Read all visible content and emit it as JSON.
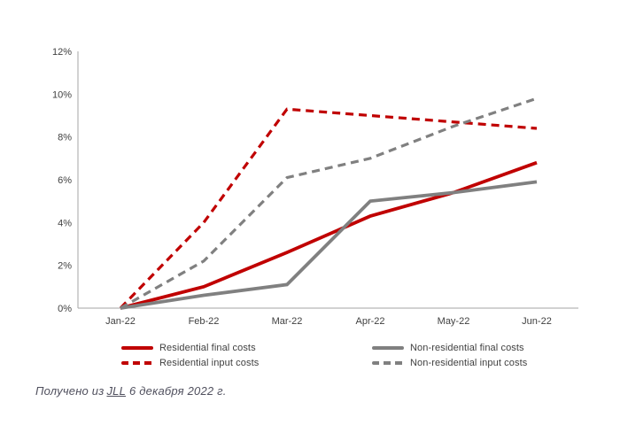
{
  "caption": {
    "prefix": "Получено из",
    "link_text": "JLL",
    "suffix": "6 декабря 2022 г."
  },
  "colors": {
    "residential_red": "#c00000",
    "non_residential_gray": "#808080",
    "axis_gray": "#a6a6a6",
    "tick_text": "#404040",
    "caption_text": "#50505e"
  },
  "chart_data": {
    "type": "line",
    "title": "",
    "xlabel": "",
    "ylabel": "",
    "grid": false,
    "legend_position": "bottom",
    "ylim": [
      0,
      12
    ],
    "ytick_step": 2,
    "yticks": [
      "0%",
      "2%",
      "4%",
      "6%",
      "8%",
      "10%",
      "12%"
    ],
    "categories": [
      "Jan-22",
      "Feb-22",
      "Mar-22",
      "Apr-22",
      "May-22",
      "Jun-22"
    ],
    "series": [
      {
        "id": "residential-final-costs",
        "name": "Residential final costs",
        "color": "#c00000",
        "line_style": "solid",
        "values": [
          0,
          1.0,
          2.6,
          4.3,
          5.4,
          6.8
        ]
      },
      {
        "id": "residential-input-costs",
        "name": "Residential input costs",
        "color": "#c00000",
        "line_style": "dashed",
        "values": [
          0,
          4.0,
          9.3,
          9.0,
          8.7,
          8.4
        ]
      },
      {
        "id": "non-residential-final-costs",
        "name": "Non-residential final costs",
        "color": "#808080",
        "line_style": "solid",
        "values": [
          0,
          0.6,
          1.1,
          5.0,
          5.4,
          5.9
        ]
      },
      {
        "id": "non-residential-input-costs",
        "name": "Non-residential input costs",
        "color": "#808080",
        "line_style": "dashed",
        "values": [
          0,
          2.2,
          6.1,
          7.0,
          8.5,
          9.8
        ]
      }
    ]
  }
}
